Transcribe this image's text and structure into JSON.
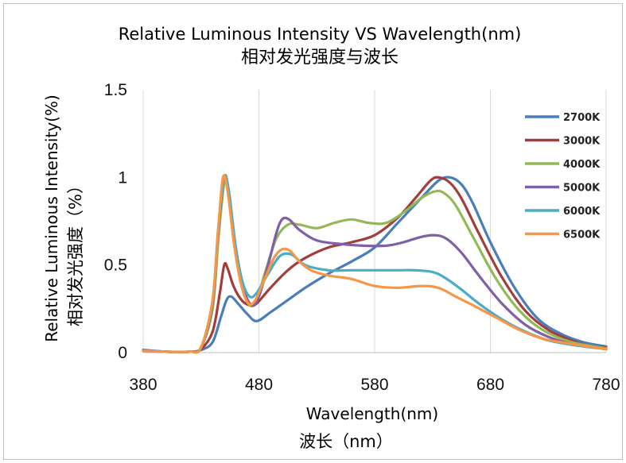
{
  "chart_data": {
    "type": "line",
    "title": "Relative Luminous Intensity VS Wavelength(nm)",
    "subtitle": "相对发光强度与波长",
    "xlabel": "Wavelength(nm)",
    "xlabel_cn": "波长（nm）",
    "ylabel": "Relative Luminous Intensity(%)",
    "ylabel_cn": "相对发光强度（%）",
    "xlim": [
      380,
      780
    ],
    "ylim": [
      0,
      1.5
    ],
    "x_ticks": [
      "380",
      "480",
      "580",
      "680",
      "780"
    ],
    "y_ticks": [
      "0",
      "0.5",
      "1",
      "1.5"
    ],
    "grid": "vertical",
    "legend_position": "top-right",
    "series": [
      {
        "name": "2700K",
        "color": "#4a7ebb",
        "points": [
          [
            380,
            0.01
          ],
          [
            400,
            0.005
          ],
          [
            420,
            0.005
          ],
          [
            430,
            0.015
          ],
          [
            440,
            0.06
          ],
          [
            447,
            0.2
          ],
          [
            452,
            0.3
          ],
          [
            456,
            0.32
          ],
          [
            462,
            0.28
          ],
          [
            470,
            0.22
          ],
          [
            478,
            0.18
          ],
          [
            490,
            0.23
          ],
          [
            505,
            0.3
          ],
          [
            520,
            0.37
          ],
          [
            540,
            0.45
          ],
          [
            560,
            0.52
          ],
          [
            580,
            0.6
          ],
          [
            600,
            0.74
          ],
          [
            620,
            0.88
          ],
          [
            635,
            0.98
          ],
          [
            645,
            1.0
          ],
          [
            655,
            0.96
          ],
          [
            665,
            0.85
          ],
          [
            680,
            0.63
          ],
          [
            700,
            0.38
          ],
          [
            720,
            0.2
          ],
          [
            740,
            0.11
          ],
          [
            760,
            0.06
          ],
          [
            780,
            0.035
          ]
        ]
      },
      {
        "name": "3000K",
        "color": "#a33d3b",
        "points": [
          [
            380,
            0.01
          ],
          [
            400,
            0.005
          ],
          [
            420,
            0.005
          ],
          [
            430,
            0.02
          ],
          [
            440,
            0.12
          ],
          [
            446,
            0.33
          ],
          [
            450,
            0.5
          ],
          [
            453,
            0.48
          ],
          [
            458,
            0.38
          ],
          [
            465,
            0.3
          ],
          [
            472,
            0.27
          ],
          [
            478,
            0.28
          ],
          [
            490,
            0.37
          ],
          [
            505,
            0.47
          ],
          [
            520,
            0.54
          ],
          [
            540,
            0.6
          ],
          [
            560,
            0.63
          ],
          [
            580,
            0.67
          ],
          [
            600,
            0.77
          ],
          [
            615,
            0.88
          ],
          [
            628,
            0.98
          ],
          [
            635,
            1.0
          ],
          [
            645,
            0.97
          ],
          [
            655,
            0.88
          ],
          [
            670,
            0.68
          ],
          [
            690,
            0.43
          ],
          [
            710,
            0.24
          ],
          [
            730,
            0.13
          ],
          [
            750,
            0.07
          ],
          [
            765,
            0.04
          ],
          [
            780,
            0.03
          ]
        ]
      },
      {
        "name": "4000K",
        "color": "#93b956",
        "points": [
          [
            380,
            0.015
          ],
          [
            400,
            0.005
          ],
          [
            420,
            0.005
          ],
          [
            430,
            0.03
          ],
          [
            440,
            0.25
          ],
          [
            445,
            0.65
          ],
          [
            450,
            0.97
          ],
          [
            453,
            0.95
          ],
          [
            458,
            0.65
          ],
          [
            465,
            0.38
          ],
          [
            472,
            0.27
          ],
          [
            478,
            0.3
          ],
          [
            485,
            0.45
          ],
          [
            495,
            0.65
          ],
          [
            505,
            0.73
          ],
          [
            515,
            0.73
          ],
          [
            530,
            0.71
          ],
          [
            545,
            0.74
          ],
          [
            560,
            0.76
          ],
          [
            575,
            0.74
          ],
          [
            590,
            0.74
          ],
          [
            605,
            0.8
          ],
          [
            620,
            0.88
          ],
          [
            632,
            0.92
          ],
          [
            640,
            0.91
          ],
          [
            650,
            0.84
          ],
          [
            665,
            0.66
          ],
          [
            685,
            0.42
          ],
          [
            705,
            0.24
          ],
          [
            725,
            0.13
          ],
          [
            750,
            0.06
          ],
          [
            780,
            0.025
          ]
        ]
      },
      {
        "name": "5000K",
        "color": "#7f5fa8",
        "points": [
          [
            380,
            0.015
          ],
          [
            400,
            0.005
          ],
          [
            420,
            0.005
          ],
          [
            430,
            0.03
          ],
          [
            440,
            0.28
          ],
          [
            445,
            0.7
          ],
          [
            450,
            1.0
          ],
          [
            454,
            0.92
          ],
          [
            460,
            0.6
          ],
          [
            467,
            0.36
          ],
          [
            474,
            0.27
          ],
          [
            480,
            0.32
          ],
          [
            488,
            0.5
          ],
          [
            495,
            0.68
          ],
          [
            500,
            0.76
          ],
          [
            506,
            0.76
          ],
          [
            515,
            0.7
          ],
          [
            530,
            0.64
          ],
          [
            550,
            0.62
          ],
          [
            570,
            0.61
          ],
          [
            590,
            0.61
          ],
          [
            605,
            0.63
          ],
          [
            620,
            0.66
          ],
          [
            632,
            0.67
          ],
          [
            642,
            0.65
          ],
          [
            655,
            0.57
          ],
          [
            670,
            0.44
          ],
          [
            690,
            0.28
          ],
          [
            710,
            0.16
          ],
          [
            730,
            0.09
          ],
          [
            750,
            0.05
          ],
          [
            780,
            0.02
          ]
        ]
      },
      {
        "name": "6000K",
        "color": "#4bacc6",
        "points": [
          [
            380,
            0.01
          ],
          [
            400,
            0.005
          ],
          [
            420,
            0.005
          ],
          [
            430,
            0.03
          ],
          [
            440,
            0.3
          ],
          [
            445,
            0.72
          ],
          [
            450,
            1.0
          ],
          [
            454,
            0.92
          ],
          [
            460,
            0.6
          ],
          [
            466,
            0.4
          ],
          [
            472,
            0.32
          ],
          [
            478,
            0.34
          ],
          [
            488,
            0.45
          ],
          [
            498,
            0.55
          ],
          [
            508,
            0.56
          ],
          [
            520,
            0.5
          ],
          [
            540,
            0.47
          ],
          [
            560,
            0.47
          ],
          [
            580,
            0.47
          ],
          [
            600,
            0.47
          ],
          [
            615,
            0.47
          ],
          [
            630,
            0.46
          ],
          [
            640,
            0.43
          ],
          [
            655,
            0.36
          ],
          [
            670,
            0.28
          ],
          [
            690,
            0.19
          ],
          [
            710,
            0.12
          ],
          [
            730,
            0.07
          ],
          [
            755,
            0.04
          ],
          [
            780,
            0.02
          ]
        ]
      },
      {
        "name": "6500K",
        "color": "#f79646",
        "points": [
          [
            380,
            0.01
          ],
          [
            400,
            0.005
          ],
          [
            420,
            0.005
          ],
          [
            430,
            0.03
          ],
          [
            440,
            0.3
          ],
          [
            445,
            0.72
          ],
          [
            449,
            1.0
          ],
          [
            453,
            0.92
          ],
          [
            459,
            0.6
          ],
          [
            465,
            0.38
          ],
          [
            471,
            0.28
          ],
          [
            477,
            0.3
          ],
          [
            485,
            0.42
          ],
          [
            493,
            0.54
          ],
          [
            500,
            0.59
          ],
          [
            507,
            0.58
          ],
          [
            515,
            0.52
          ],
          [
            525,
            0.47
          ],
          [
            540,
            0.44
          ],
          [
            560,
            0.42
          ],
          [
            580,
            0.38
          ],
          [
            600,
            0.37
          ],
          [
            620,
            0.38
          ],
          [
            635,
            0.37
          ],
          [
            650,
            0.32
          ],
          [
            665,
            0.27
          ],
          [
            685,
            0.2
          ],
          [
            705,
            0.13
          ],
          [
            725,
            0.08
          ],
          [
            750,
            0.05
          ],
          [
            780,
            0.02
          ]
        ]
      }
    ]
  }
}
